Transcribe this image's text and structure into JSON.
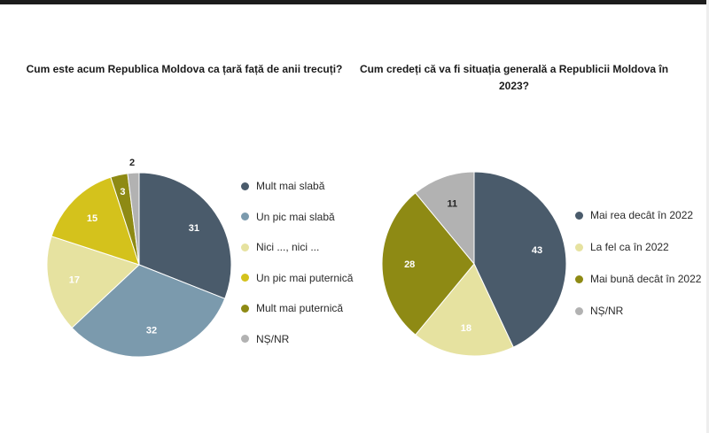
{
  "chart_data": [
    {
      "type": "pie",
      "title": "Cum este acum Republica Moldova ca țară față de anii trecuți?",
      "slices": [
        {
          "label": "Mult mai slabă",
          "value": 31,
          "color": "#4a5b6b",
          "label_color": "#ffffff"
        },
        {
          "label": "Un pic mai slabă",
          "value": 32,
          "color": "#7b9aad",
          "label_color": "#ffffff"
        },
        {
          "label": "Nici ..., nici ...",
          "value": 17,
          "color": "#e6e2a0",
          "label_color": "#ffffff"
        },
        {
          "label": "Un pic mai puternică",
          "value": 15,
          "color": "#d4c21c",
          "label_color": "#ffffff"
        },
        {
          "label": "Mult mai puternică",
          "value": 3,
          "color": "#8e8a14",
          "label_color": "#ffffff"
        },
        {
          "label": "NȘ/NR",
          "value": 2,
          "color": "#b2b2b2",
          "label_color": "#222222"
        }
      ]
    },
    {
      "type": "pie",
      "title": "Cum credeți că va fi situația generală a Republicii Moldova în 2023?",
      "slices": [
        {
          "label": "Mai rea decât în 2022",
          "value": 43,
          "color": "#4a5b6b",
          "label_color": "#ffffff"
        },
        {
          "label": "La fel ca în 2022",
          "value": 18,
          "color": "#e6e2a0",
          "label_color": "#ffffff"
        },
        {
          "label": "Mai bună decât în 2022",
          "value": 28,
          "color": "#8e8a14",
          "label_color": "#ffffff"
        },
        {
          "label": "NȘ/NR",
          "value": 11,
          "color": "#b2b2b2",
          "label_color": "#222222"
        }
      ]
    }
  ]
}
